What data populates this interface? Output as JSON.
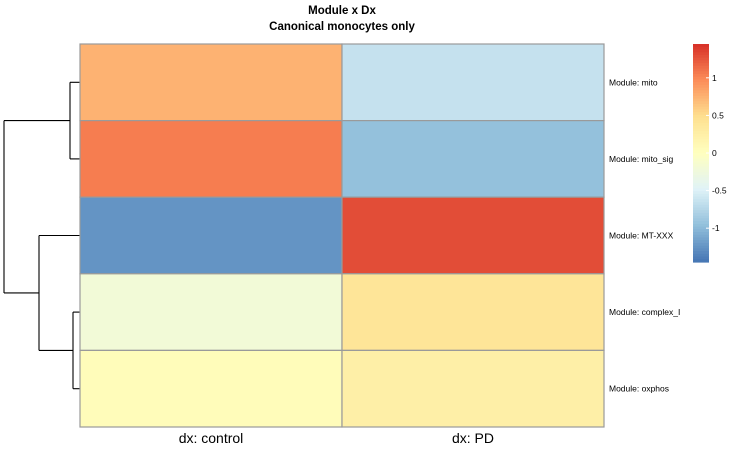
{
  "chart_data": {
    "type": "heatmap",
    "title": "Module x Dx",
    "subtitle": "Canonical monocytes only",
    "rows": [
      "Module:  mito",
      "Module:  mito_sig",
      "Module:  MT-XXX",
      "Module:  complex_I",
      "Module:  oxphos"
    ],
    "columns": [
      "dx:  control",
      "dx:  PD"
    ],
    "values": [
      [
        0.75,
        -0.65
      ],
      [
        1.05,
        -0.95
      ],
      [
        -1.25,
        1.3
      ],
      [
        -0.2,
        0.4
      ],
      [
        0.05,
        0.25
      ]
    ],
    "color_scale": {
      "min": -1.45,
      "max": 1.45,
      "colors": [
        "#4575b4",
        "#91bfdb",
        "#e0f3f8",
        "#ffffbf",
        "#fee090",
        "#fc8d59",
        "#d73027"
      ],
      "ticks": [
        {
          "value": 1,
          "label": "1"
        },
        {
          "value": 0.5,
          "label": "0.5"
        },
        {
          "value": 0,
          "label": "0"
        },
        {
          "value": -0.5,
          "label": "-0.5"
        },
        {
          "value": -1,
          "label": "-1"
        }
      ]
    },
    "row_dendrogram": true,
    "legend_position": "right"
  }
}
